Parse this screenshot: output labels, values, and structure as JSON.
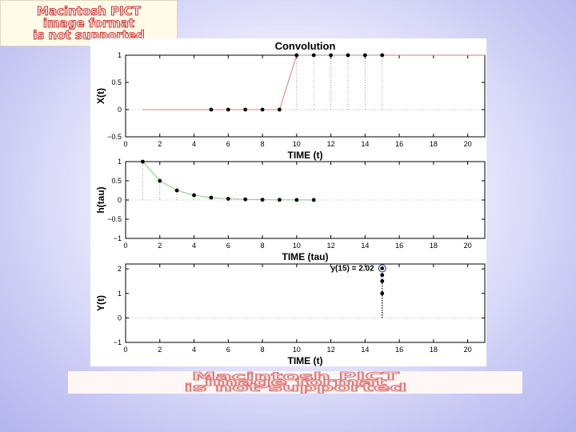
{
  "pict_badge": {
    "lines": [
      "Macintosh PICT",
      "image format",
      "is not supported"
    ]
  },
  "pict_banner": {
    "lines": [
      "Macintosh PICT",
      "image format",
      "is not supported"
    ]
  },
  "colors": {
    "signal_x": "#e07a7a",
    "signal_h": "#7fd07f",
    "stems": "#888888",
    "points": "#000000",
    "highlight": "#4a4a99"
  },
  "chart_data": [
    {
      "type": "scatter",
      "title": "Convolution",
      "xlabel": "TIME (t)",
      "ylabel": "X(t)",
      "xlim": [
        0,
        21
      ],
      "ylim": [
        -0.5,
        1
      ],
      "xticks": [
        0,
        2,
        4,
        6,
        8,
        10,
        12,
        14,
        16,
        18,
        20
      ],
      "yticks": [
        -0.5,
        0,
        0.5,
        1
      ],
      "ytick_labels": [
        "−0.5",
        "0",
        "0.5",
        "1"
      ],
      "line": {
        "x": [
          1,
          9,
          10,
          21
        ],
        "y": [
          0,
          0,
          1,
          1
        ]
      },
      "points": {
        "x": [
          5,
          6,
          7,
          8,
          9,
          10,
          11,
          12,
          13,
          14,
          15
        ],
        "y": [
          0,
          0,
          0,
          0,
          0,
          1,
          1,
          1,
          1,
          1,
          1
        ]
      }
    },
    {
      "type": "scatter",
      "title": "",
      "xlabel": "TIME (tau)",
      "ylabel": "h(tau)",
      "xlim": [
        0,
        21
      ],
      "ylim": [
        -1,
        1
      ],
      "xticks": [
        0,
        2,
        4,
        6,
        8,
        10,
        12,
        14,
        16,
        18,
        20
      ],
      "yticks": [
        -1,
        -0.5,
        0,
        0.5,
        1
      ],
      "ytick_labels": [
        "−1",
        "−0.5",
        "0",
        "0.5",
        "1"
      ],
      "line": {
        "x": [
          1,
          2,
          3,
          4,
          5,
          6,
          7,
          8,
          9,
          10,
          11
        ],
        "y": [
          1,
          0.5,
          0.25,
          0.125,
          0.0625,
          0.031,
          0.016,
          0.008,
          0.004,
          0.002,
          0.001
        ]
      },
      "points": {
        "x": [
          1,
          2,
          3,
          4,
          5,
          6,
          7,
          8,
          9,
          10,
          11
        ],
        "y": [
          1,
          0.5,
          0.25,
          0.125,
          0.0625,
          0.031,
          0.016,
          0.008,
          0.004,
          0.002,
          0.001
        ]
      }
    },
    {
      "type": "scatter",
      "title": "",
      "xlabel": "TIME (t)",
      "ylabel": "Y(t)",
      "xlim": [
        0,
        21
      ],
      "ylim": [
        -1,
        2.2
      ],
      "xticks": [
        0,
        2,
        4,
        6,
        8,
        10,
        12,
        14,
        16,
        18,
        20
      ],
      "yticks": [
        -1,
        0,
        1,
        2
      ],
      "ytick_labels": [
        "−1",
        "0",
        "1",
        "2"
      ],
      "annotation": "y(15) = 2.02",
      "points": {
        "x": [
          15,
          15,
          15,
          15
        ],
        "y": [
          1,
          1.5,
          1.75,
          2.02
        ]
      },
      "highlight": {
        "x": 15,
        "y": 2.02
      }
    }
  ]
}
